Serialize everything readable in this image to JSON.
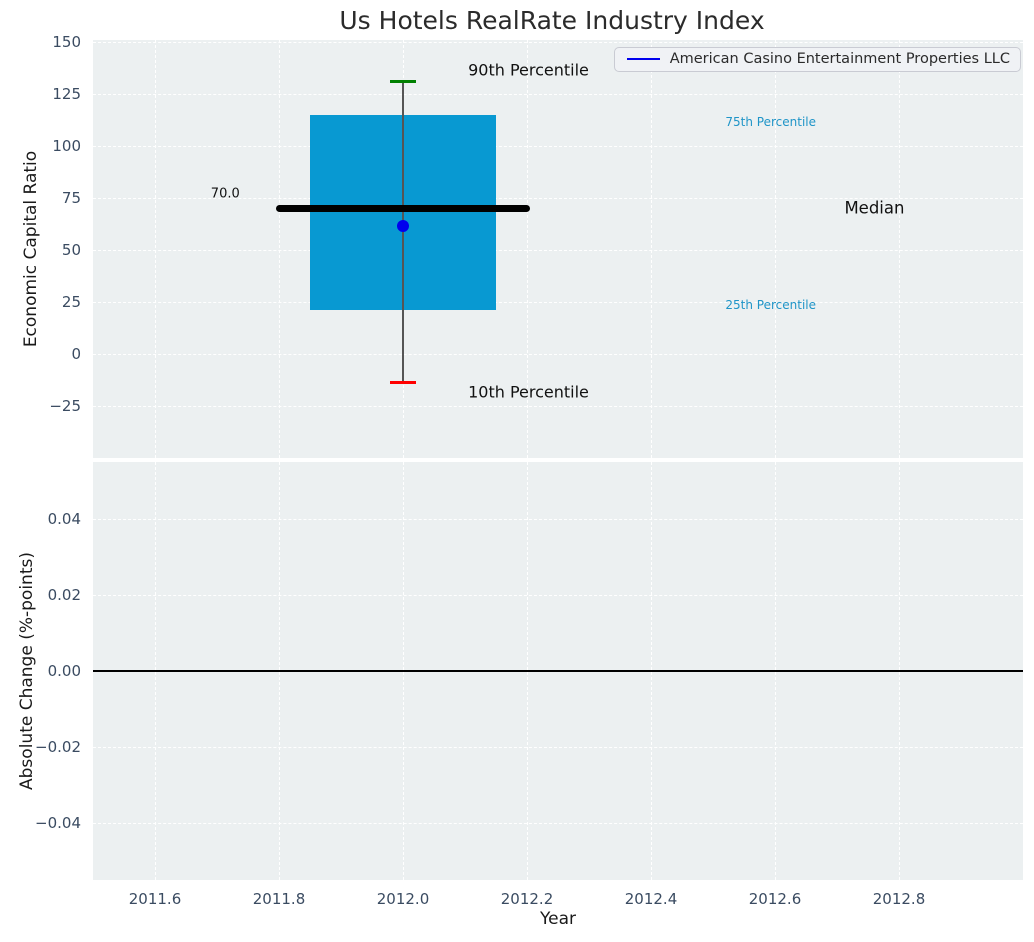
{
  "title": "Us Hotels RealRate Industry Index",
  "legend": {
    "entries": [
      {
        "label": "American Casino Entertainment Properties LLC",
        "color": "#0000ee"
      }
    ]
  },
  "axes": {
    "top": {
      "ylabel": "Economic Capital Ratio"
    },
    "bottom": {
      "ylabel": "Absolute Change (%-points)",
      "xlabel": "Year"
    }
  },
  "style": {
    "axes_bg": "#ecf0f1",
    "grid_color": "#ffffff",
    "tick_color": "#3a4b61",
    "text_color": "#111111"
  },
  "chart_data": [
    {
      "type": "box",
      "title": "Us Hotels RealRate Industry Index",
      "ylabel": "Economic Capital Ratio",
      "x_center": 2012.0,
      "percentiles": {
        "p10": -13.5,
        "p25": 21,
        "median": 70,
        "p75": 115,
        "p90": 131
      },
      "median_value_label": "70.0",
      "company_point": {
        "name": "American Casino Entertainment Properties LLC",
        "x": 2012.0,
        "y": 61.5,
        "color": "#0000ee"
      },
      "box_half_width": 0.15,
      "median_half_width": 0.205,
      "cap_half_width": 0.021,
      "xlim": [
        2011.5,
        2013.0
      ],
      "ylim": [
        -50,
        151
      ],
      "yticks": [
        150,
        125,
        100,
        75,
        50,
        25,
        0,
        -25
      ],
      "ytick_labels": [
        "150",
        "125",
        "100",
        "75",
        "50",
        "25",
        "0",
        "−25"
      ],
      "xticks": [
        2011.6,
        2011.8,
        2012.0,
        2012.2,
        2012.4,
        2012.6,
        2012.8
      ],
      "grid": "dashed-white",
      "legend_position": "upper right",
      "colors": {
        "box_fill": "#0899d2",
        "median_line": "#000000",
        "whisker": "#555555",
        "cap_top": "#008000",
        "cap_bottom": "#ff0000"
      },
      "annotations": [
        {
          "name": "annotation-90th-percentile",
          "text": "90th Percentile",
          "x": 2012.105,
          "y": 136.5,
          "color": "#111111",
          "size": 16
        },
        {
          "name": "annotation-10th-percentile",
          "text": "10th Percentile",
          "x": 2012.105,
          "y": -18.5,
          "color": "#111111",
          "size": 16
        },
        {
          "name": "annotation-75th-percentile",
          "text": "75th Percentile",
          "x": 2012.52,
          "y": 111.5,
          "color": "#2095c8",
          "size": 12
        },
        {
          "name": "annotation-25th-percentile",
          "text": "25th Percentile",
          "x": 2012.52,
          "y": 23.5,
          "color": "#2095c8",
          "size": 12
        },
        {
          "name": "annotation-median",
          "text": "Median",
          "x": 2012.712,
          "y": 70,
          "color": "#111111",
          "size": 16.5
        },
        {
          "name": "annotation-median-value",
          "text": "70.0",
          "x": 2011.69,
          "y": 77,
          "color": "#111111",
          "size": 13
        }
      ]
    },
    {
      "type": "line",
      "ylabel": "Absolute Change (%-points)",
      "xlabel": "Year",
      "xlim": [
        2011.5,
        2013.0
      ],
      "ylim": [
        -0.055,
        0.055
      ],
      "yticks": [
        0.04,
        0.02,
        0.0,
        -0.02,
        -0.04
      ],
      "ytick_labels": [
        "0.04",
        "0.02",
        "0.00",
        "−0.02",
        "−0.04"
      ],
      "xticks": [
        2011.6,
        2011.8,
        2012.0,
        2012.2,
        2012.4,
        2012.6,
        2012.8
      ],
      "xtick_labels": [
        "2011.6",
        "2011.8",
        "2012.0",
        "2012.2",
        "2012.4",
        "2012.6",
        "2012.8"
      ],
      "zero_line": 0.0,
      "grid": "dashed-white",
      "series": []
    }
  ]
}
